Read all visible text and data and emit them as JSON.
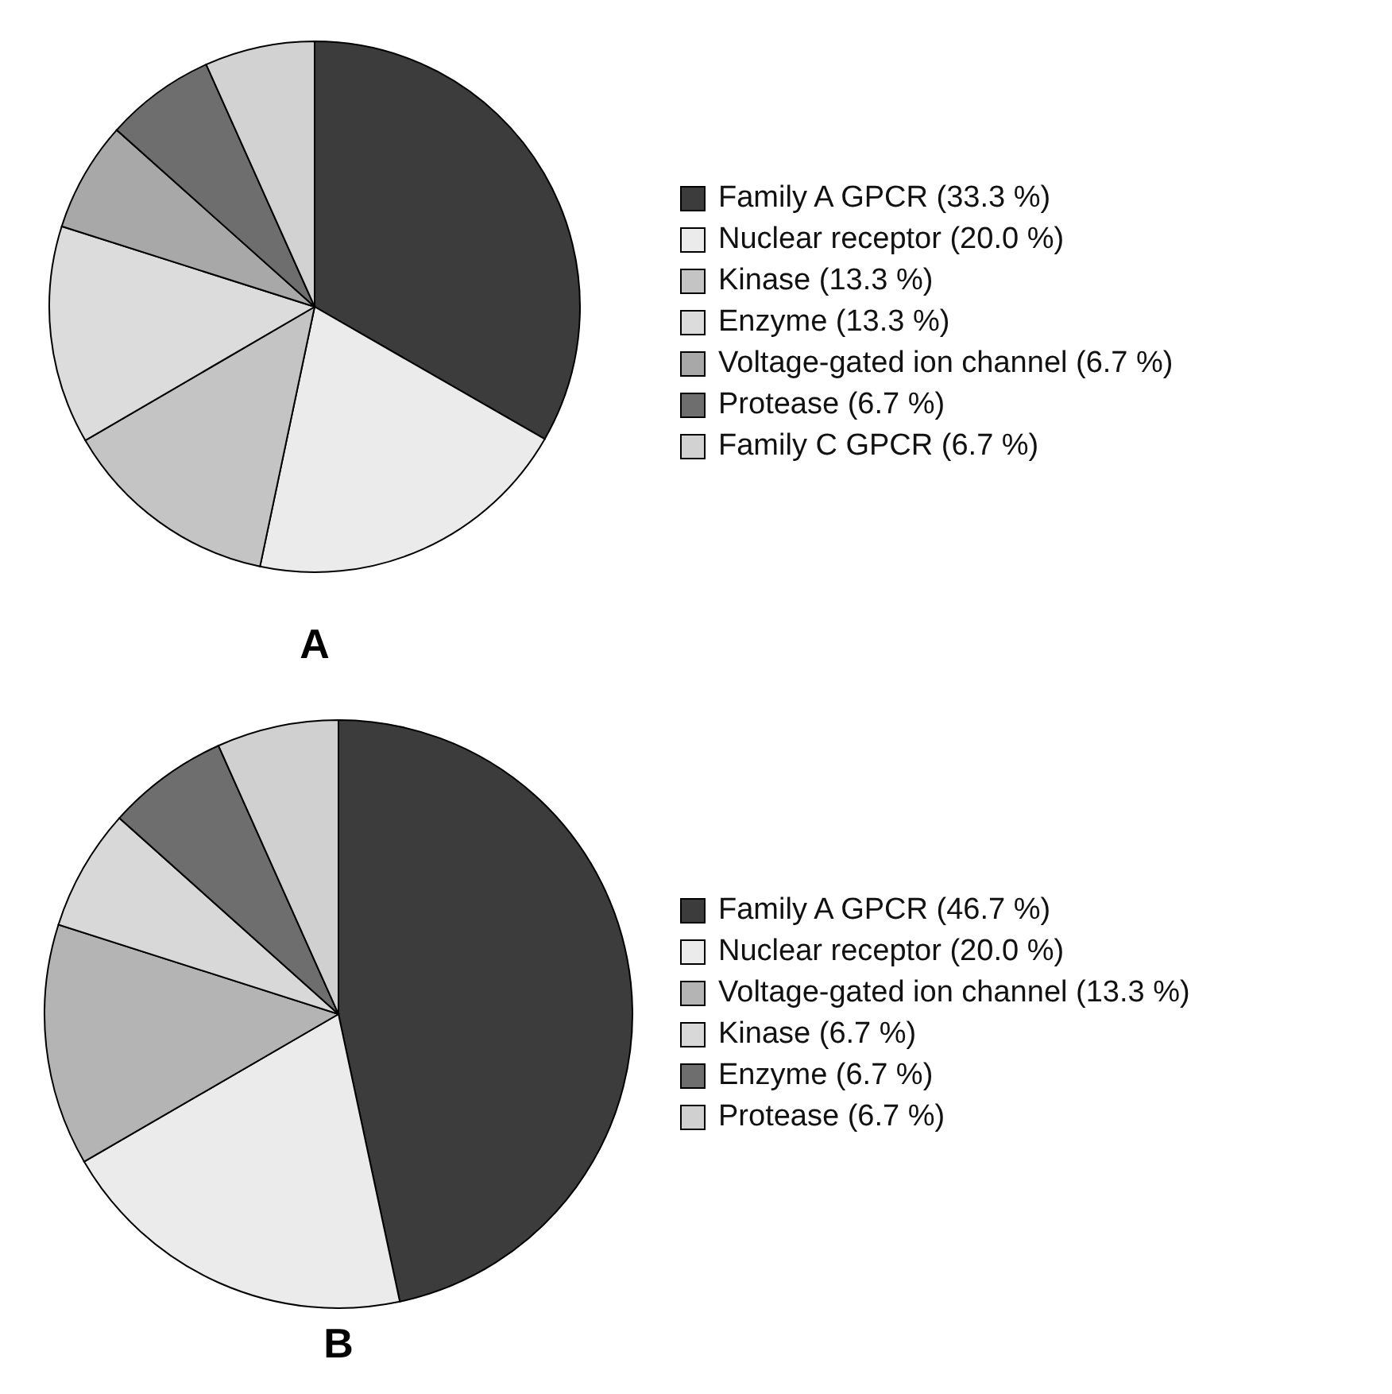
{
  "chart_data": [
    {
      "type": "pie",
      "title": "A",
      "categories": [
        "Family A GPCR (33.3 %)",
        "Nuclear receptor (20.0 %)",
        "Kinase (13.3 %)",
        "Enzyme (13.3 %)",
        "Voltage-gated ion channel (6.7 %)",
        "Protease (6.7 %)",
        "Family C GPCR (6.7 %)"
      ],
      "values": [
        33.3,
        20.0,
        13.3,
        13.3,
        6.7,
        6.7,
        6.7
      ],
      "colors": [
        "#3c3c3c",
        "#ebebeb",
        "#c4c4c4",
        "#dcdcdc",
        "#a8a8a8",
        "#6e6e6e",
        "#d2d2d2"
      ],
      "legend": "right"
    },
    {
      "type": "pie",
      "title": "B",
      "categories": [
        "Family A GPCR (46.7 %)",
        "Nuclear receptor (20.0 %)",
        "Voltage-gated ion channel (13.3 %)",
        "Kinase (6.7 %)",
        "Enzyme (6.7 %)",
        "Protease (6.7 %)"
      ],
      "values": [
        46.7,
        20.0,
        13.3,
        6.7,
        6.7,
        6.7
      ],
      "colors": [
        "#3c3c3c",
        "#ebebeb",
        "#b4b4b4",
        "#d8d8d8",
        "#6e6e6e",
        "#d0d0d0"
      ],
      "legend": "right"
    }
  ]
}
